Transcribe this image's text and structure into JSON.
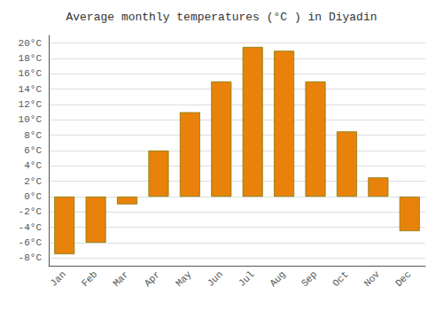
{
  "chart_data": {
    "type": "bar",
    "title": "Average monthly temperatures (°C ) in Diyadin",
    "categories": [
      "Jan",
      "Feb",
      "Mar",
      "Apr",
      "May",
      "Jun",
      "Jul",
      "Aug",
      "Sep",
      "Oct",
      "Nov",
      "Dec"
    ],
    "values": [
      -7.5,
      -6.0,
      -1.0,
      6.0,
      11.0,
      15.0,
      19.5,
      19.0,
      15.0,
      8.5,
      2.5,
      -4.5
    ],
    "color": "#E8820A",
    "ylim": [
      -9,
      21
    ],
    "yticks": [
      {
        "value": -8,
        "label": "-8°C"
      },
      {
        "value": -6,
        "label": "-6°C"
      },
      {
        "value": -4,
        "label": "-4°C"
      },
      {
        "value": -2,
        "label": "-2°C"
      },
      {
        "value": 0,
        "label": "0°C"
      },
      {
        "value": 2,
        "label": "2°C"
      },
      {
        "value": 4,
        "label": "4°C"
      },
      {
        "value": 6,
        "label": "6°C"
      },
      {
        "value": 8,
        "label": "8°C"
      },
      {
        "value": 10,
        "label": "10°C"
      },
      {
        "value": 12,
        "label": "12°C"
      },
      {
        "value": 14,
        "label": "14°C"
      },
      {
        "value": 16,
        "label": "16°C"
      },
      {
        "value": 18,
        "label": "18°C"
      },
      {
        "value": 20,
        "label": "20°C"
      }
    ],
    "grid": true
  }
}
